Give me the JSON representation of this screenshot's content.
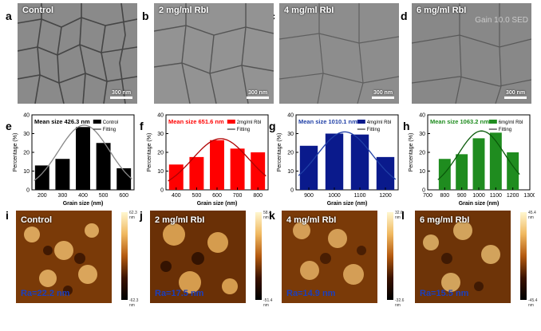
{
  "panels_top": [
    {
      "letter": "a",
      "title": "Control",
      "scale": "300 nm"
    },
    {
      "letter": "b",
      "title": "2 mg/ml RbI",
      "scale": "300 nm"
    },
    {
      "letter": "c",
      "title": "4 mg/ml RbI",
      "scale": "300 nm"
    },
    {
      "letter": "d",
      "title": "6 mg/ml RbI",
      "scale": "300 nm",
      "watermark": "Gain 10.0 SED"
    }
  ],
  "panels_hist_letters": [
    "e",
    "f",
    "g",
    "h"
  ],
  "panels_afm": [
    {
      "letter": "i",
      "title": "Control",
      "ra": "Ra=22.2 nm",
      "top": "62.3 nm",
      "bottom": "-62.3 nm"
    },
    {
      "letter": "j",
      "title": "2 mg/ml RbI",
      "ra": "Ra=17.5 nm",
      "top": "58.4 nm",
      "bottom": "-51.4 nm"
    },
    {
      "letter": "k",
      "title": "4 mg/ml RbI",
      "ra": "Ra=14.9 nm",
      "top": "32.6 nm",
      "bottom": "-32.6 nm"
    },
    {
      "letter": "l",
      "title": "6 mg/ml RbI",
      "ra": "Ra=15.5 nm",
      "top": "45.4 nm",
      "bottom": "-45.4 nm"
    }
  ],
  "chart_data": [
    {
      "type": "bar",
      "title": "Mean size 426.3 nm",
      "title_color": "#000000",
      "bar_color": "#000000",
      "legend": [
        "Control",
        "Fitting"
      ],
      "xlabel": "Grain size (nm)",
      "ylabel": "Percentage (%)",
      "x": [
        200,
        300,
        400,
        500,
        600
      ],
      "values": [
        13,
        16.5,
        33.5,
        25,
        11.5
      ],
      "xticks": [
        200,
        300,
        400,
        500,
        600
      ],
      "xlim": [
        150,
        650
      ],
      "ylim": [
        0,
        40
      ],
      "yticks": [
        0,
        10,
        20,
        30,
        40
      ]
    },
    {
      "type": "bar",
      "title": "Mean size 651.6 nm",
      "title_color": "#ff0000",
      "bar_color": "#ff0000",
      "legend": [
        "2mg/ml RbI",
        "Fitting"
      ],
      "xlabel": "Grain size (nm)",
      "ylabel": "Percentage (%)",
      "x": [
        400,
        500,
        600,
        700,
        800
      ],
      "values": [
        13.5,
        17.5,
        26.5,
        22,
        20
      ],
      "xticks": [
        400,
        500,
        600,
        700,
        800
      ],
      "xlim": [
        350,
        850
      ],
      "ylim": [
        0,
        40
      ],
      "yticks": [
        0,
        10,
        20,
        30,
        40
      ]
    },
    {
      "type": "bar",
      "title": "Mean size 1010.1 nm",
      "title_color": "#1f3fa6",
      "bar_color": "#0a1a8c",
      "legend": [
        "4mg/ml RbI",
        "Fitting"
      ],
      "xlabel": "Grain size (nm)",
      "ylabel": "Percentage (%)",
      "x": [
        900,
        1000,
        1100,
        1200
      ],
      "values": [
        23.5,
        30,
        29.5,
        17.5
      ],
      "xticks": [
        900,
        1000,
        1100,
        1200
      ],
      "xlim": [
        850,
        1250
      ],
      "ylim": [
        0,
        40
      ],
      "yticks": [
        0,
        10,
        20,
        30,
        40
      ]
    },
    {
      "type": "bar",
      "title": "Mean size 1063.2 nm",
      "title_color": "#1f8c1f",
      "bar_color": "#1f8c1f",
      "legend": [
        "6mg/ml RbI",
        "Fitting"
      ],
      "xlabel": "Grain size (nm)",
      "ylabel": "Percentage (%)",
      "x": [
        800,
        900,
        1000,
        1100,
        1200
      ],
      "values": [
        16.5,
        19,
        27.5,
        30.5,
        20
      ],
      "xticks": [
        700,
        800,
        900,
        1000,
        1100,
        1200,
        1300
      ],
      "xlim": [
        700,
        1300
      ],
      "ylim": [
        0,
        40
      ],
      "yticks": [
        0,
        10,
        20,
        30,
        40
      ]
    }
  ]
}
